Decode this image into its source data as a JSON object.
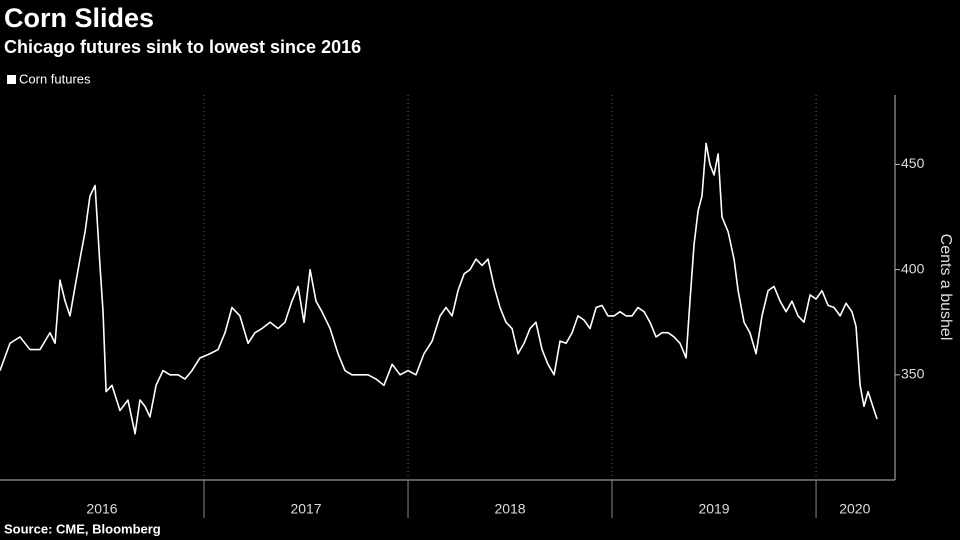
{
  "chart_data": {
    "type": "line",
    "title": "Corn Slides",
    "subtitle": "Chicago futures sink to lowest since 2016",
    "y_axis_label": "Cents a bushel",
    "source": "Source: CME, Bloomberg",
    "xlim": [
      2016.0,
      2020.387
    ],
    "ylim": [
      300,
      483
    ],
    "yticks": [
      350,
      400,
      450
    ],
    "year_boundaries": [
      2017,
      2018,
      2019,
      2020
    ],
    "year_labels": [
      {
        "value": 2016.5,
        "label": "2016"
      },
      {
        "value": 2017.5,
        "label": "2017"
      },
      {
        "value": 2018.5,
        "label": "2018"
      },
      {
        "value": 2019.5,
        "label": "2019"
      },
      {
        "value": 2020.19,
        "label": "2020"
      }
    ],
    "grid": false,
    "x": [
      2016.0,
      2016.049,
      2016.098,
      2016.147,
      2016.196,
      2016.245,
      2016.27,
      2016.294,
      2016.319,
      2016.343,
      2016.368,
      2016.392,
      2016.417,
      2016.441,
      2016.466,
      2016.49,
      2016.505,
      2016.52,
      2016.549,
      2016.588,
      2016.627,
      2016.662,
      2016.686,
      2016.711,
      2016.735,
      2016.765,
      2016.799,
      2016.833,
      2016.873,
      2016.907,
      2016.941,
      2016.98,
      2017.029,
      2017.069,
      2017.103,
      2017.137,
      2017.176,
      2017.216,
      2017.25,
      2017.284,
      2017.324,
      2017.363,
      2017.397,
      2017.431,
      2017.461,
      2017.49,
      2017.52,
      2017.549,
      2017.578,
      2017.618,
      2017.657,
      2017.691,
      2017.725,
      2017.765,
      2017.804,
      2017.843,
      2017.882,
      2017.922,
      2017.961,
      2018.0,
      2018.039,
      2018.078,
      2018.118,
      2018.157,
      2018.186,
      2018.216,
      2018.245,
      2018.275,
      2018.304,
      2018.333,
      2018.363,
      2018.392,
      2018.422,
      2018.451,
      2018.48,
      2018.51,
      2018.539,
      2018.569,
      2018.598,
      2018.627,
      2018.657,
      2018.686,
      2018.716,
      2018.745,
      2018.775,
      2018.804,
      2018.833,
      2018.863,
      2018.892,
      2018.922,
      2018.951,
      2018.98,
      2019.01,
      2019.039,
      2019.069,
      2019.098,
      2019.127,
      2019.157,
      2019.186,
      2019.216,
      2019.245,
      2019.275,
      2019.304,
      2019.333,
      2019.363,
      2019.382,
      2019.402,
      2019.422,
      2019.441,
      2019.461,
      2019.48,
      2019.5,
      2019.52,
      2019.539,
      2019.569,
      2019.598,
      2019.618,
      2019.647,
      2019.676,
      2019.706,
      2019.735,
      2019.765,
      2019.794,
      2019.824,
      2019.853,
      2019.882,
      2019.912,
      2019.941,
      2019.971,
      2020.0,
      2020.029,
      2020.059,
      2020.088,
      2020.118,
      2020.147,
      2020.176,
      2020.196,
      2020.216,
      2020.235,
      2020.255,
      2020.275,
      2020.299
    ],
    "series": [
      {
        "name": "Corn futures",
        "color": "#ffffff",
        "values": [
          352,
          365,
          368,
          362,
          362,
          370,
          365,
          395,
          385,
          378,
          392,
          405,
          418,
          435,
          440,
          402,
          380,
          342,
          345,
          333,
          338,
          322,
          338,
          335,
          330,
          345,
          352,
          350,
          350,
          348,
          352,
          358,
          360,
          362,
          370,
          382,
          378,
          365,
          370,
          372,
          375,
          372,
          375,
          385,
          392,
          375,
          400,
          385,
          380,
          372,
          360,
          352,
          350,
          350,
          350,
          348,
          345,
          355,
          350,
          352,
          350,
          360,
          366,
          378,
          382,
          378,
          390,
          398,
          400,
          405,
          402,
          405,
          392,
          382,
          375,
          372,
          360,
          365,
          372,
          375,
          362,
          355,
          350,
          366,
          365,
          370,
          378,
          376,
          372,
          382,
          383,
          378,
          378,
          380,
          378,
          378,
          382,
          380,
          375,
          368,
          370,
          370,
          368,
          365,
          358,
          385,
          412,
          428,
          435,
          460,
          450,
          445,
          455,
          425,
          418,
          405,
          390,
          375,
          370,
          360,
          378,
          390,
          392,
          385,
          380,
          385,
          378,
          375,
          388,
          386,
          390,
          383,
          382,
          378,
          384,
          380,
          373,
          345,
          335,
          342,
          336,
          329
        ]
      }
    ]
  }
}
